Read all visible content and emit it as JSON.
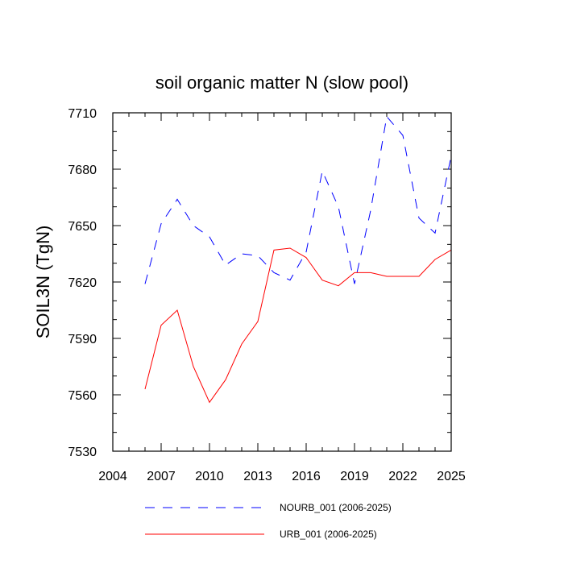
{
  "chart_data": {
    "type": "line",
    "title": "soil organic matter N (slow pool)",
    "xlabel": "",
    "ylabel": "SOIL3N  (TgN)",
    "xlim": [
      2004,
      2025
    ],
    "ylim": [
      7530,
      7710
    ],
    "xticks": [
      2004,
      2007,
      2010,
      2013,
      2016,
      2019,
      2022,
      2025
    ],
    "yticks": [
      7530,
      7560,
      7590,
      7620,
      7650,
      7680,
      7710
    ],
    "x": [
      2006,
      2007,
      2008,
      2009,
      2010,
      2011,
      2012,
      2013,
      2014,
      2015,
      2016,
      2017,
      2018,
      2019,
      2020,
      2021,
      2022,
      2023,
      2024,
      2025
    ],
    "series": [
      {
        "name": "NOURB_001 (2006-2025)",
        "color": "#0000ff",
        "dash": "dashed",
        "values": [
          7619,
          7651,
          7664,
          7650,
          7644,
          7629,
          7635,
          7634,
          7625,
          7621,
          7636,
          7679,
          7660,
          7619,
          7658,
          7708,
          7698,
          7654,
          7646,
          7687
        ]
      },
      {
        "name": "URB_001 (2006-2025)",
        "color": "#ff0000",
        "dash": "solid",
        "values": [
          7563,
          7597,
          7605,
          7575,
          7556,
          7568,
          7587,
          7599,
          7637,
          7638,
          7633,
          7621,
          7618,
          7625,
          7625,
          7623,
          7623,
          7623,
          7632,
          7637
        ]
      }
    ],
    "legend_position": "bottom"
  }
}
